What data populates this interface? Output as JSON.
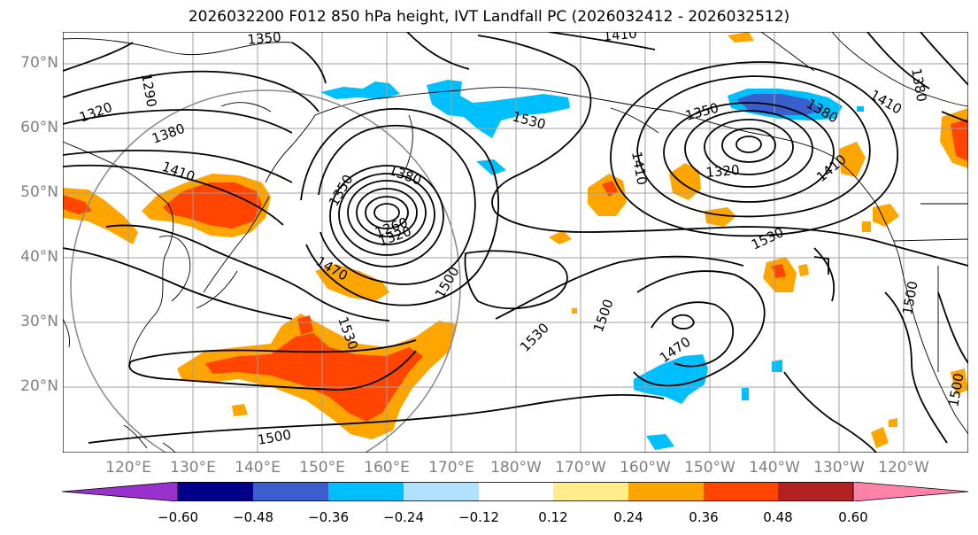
{
  "title": "2026032200 F012 850 hPa height, IVT Landfall PC (2026032412 - 2026032512)",
  "lat_labels": [
    "70°N",
    "60°N",
    "50°N",
    "40°N",
    "30°N",
    "20°N"
  ],
  "lon_labels": [
    "120°E",
    "130°E",
    "140°E",
    "150°E",
    "160°E",
    "170°E",
    "180°W",
    "170°W",
    "160°W",
    "150°W",
    "140°W",
    "130°W",
    "120°W"
  ],
  "contour_labels": [
    "1290",
    "1320",
    "1380",
    "1410",
    "1350",
    "1380",
    "1260",
    "1320",
    "1470",
    "1500",
    "1530",
    "1530",
    "1500",
    "1530",
    "1350",
    "1380",
    "1410",
    "1380",
    "1320",
    "1410",
    "1470",
    "1530",
    "1500",
    "1500",
    "1500",
    "1410",
    "1350",
    "1410"
  ],
  "colorbar": {
    "ticks": [
      "−0.60",
      "−0.48",
      "−0.36",
      "−0.24",
      "−0.12",
      "0.12",
      "0.24",
      "0.36",
      "0.48",
      "0.60"
    ],
    "colors": [
      "#9932cc",
      "#00008b",
      "#3a5fcd",
      "#00bfff",
      "#b0e2ff",
      "#ffffff",
      "#ffec8b",
      "#ffa500",
      "#ff4500",
      "#b22222",
      "#ff82ab"
    ]
  }
}
